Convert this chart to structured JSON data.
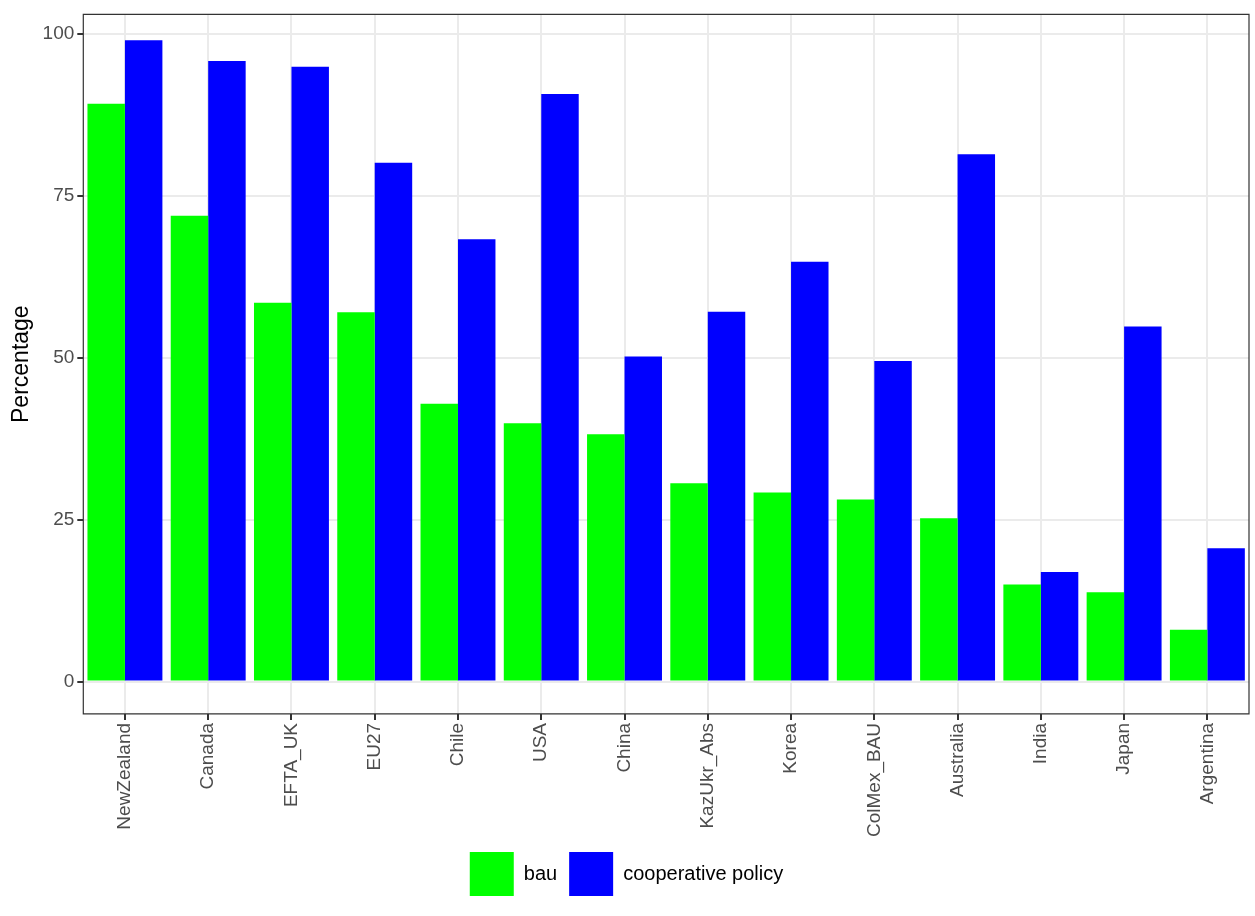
{
  "chart_data": {
    "type": "bar",
    "ylabel": "Percentage",
    "categories": [
      "NewZealand",
      "Canada",
      "EFTA_UK",
      "EU27",
      "Chile",
      "USA",
      "China",
      "KazUkr_Abs",
      "Korea",
      "ColMex_BAU",
      "Australia",
      "India",
      "Japan",
      "Argentina"
    ],
    "series": [
      {
        "name": "bau",
        "color": "#00ff00",
        "values": [
          89.2,
          71.9,
          58.5,
          57.0,
          42.9,
          39.9,
          38.2,
          30.6,
          29.2,
          28.1,
          25.2,
          15.0,
          13.8,
          8.0
        ]
      },
      {
        "name": "cooperative policy",
        "color": "#0000ff",
        "values": [
          99.0,
          95.8,
          94.9,
          80.1,
          68.3,
          90.7,
          50.2,
          57.1,
          64.8,
          49.5,
          81.4,
          16.9,
          54.8,
          20.6
        ]
      }
    ],
    "ylim": [
      -5,
      103
    ],
    "yticks": [
      0,
      25,
      50,
      75,
      100
    ],
    "grid": true,
    "legend": "bottom"
  }
}
